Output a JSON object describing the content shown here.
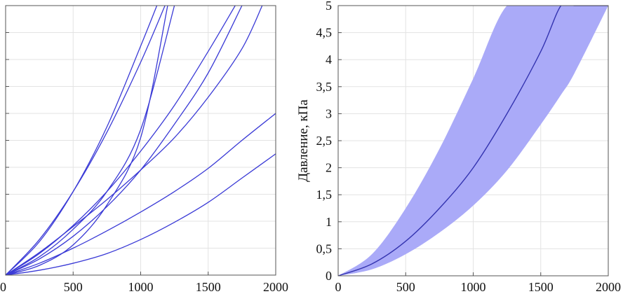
{
  "chart_data": [
    {
      "type": "line",
      "xlim": [
        0,
        2000
      ],
      "ylim": [
        0,
        5
      ],
      "x_ticks": [
        "0",
        "500",
        "1000",
        "1500",
        "2000"
      ],
      "grid": true,
      "line_color": "#3a3ad6",
      "series": [
        {
          "x": [
            0,
            250,
            500,
            750,
            1000,
            1180
          ],
          "y": [
            0,
            0.66,
            1.55,
            2.65,
            3.95,
            5.0
          ]
        },
        {
          "x": [
            0,
            250,
            500,
            750,
            1000,
            1120
          ],
          "y": [
            0,
            0.62,
            1.55,
            2.75,
            4.25,
            5.0
          ]
        },
        {
          "x": [
            0,
            250,
            500,
            750,
            1000,
            1250
          ],
          "y": [
            0,
            0.34,
            0.85,
            1.55,
            2.7,
            5.0
          ]
        },
        {
          "x": [
            0,
            250,
            500,
            750,
            1000,
            1200
          ],
          "y": [
            0,
            0.18,
            0.56,
            1.3,
            2.55,
            5.0
          ]
        },
        {
          "x": [
            0,
            250,
            500,
            750,
            1000,
            1250,
            1500,
            1700
          ],
          "y": [
            0,
            0.4,
            0.92,
            1.55,
            2.3,
            3.15,
            4.15,
            5.0
          ]
        },
        {
          "x": [
            0,
            250,
            500,
            750,
            1000,
            1250,
            1500,
            1750
          ],
          "y": [
            0,
            0.3,
            0.72,
            1.27,
            1.95,
            2.8,
            3.75,
            5.0
          ]
        },
        {
          "x": [
            0,
            250,
            500,
            750,
            1000,
            1250,
            1500,
            1750,
            1900
          ],
          "y": [
            0,
            0.42,
            0.9,
            1.4,
            1.95,
            2.55,
            3.3,
            4.2,
            5.0
          ]
        },
        {
          "x": [
            0,
            250,
            500,
            750,
            1000,
            1250,
            1500,
            1750,
            2000
          ],
          "y": [
            0,
            0.22,
            0.5,
            0.82,
            1.17,
            1.55,
            1.98,
            2.5,
            3.0
          ]
        },
        {
          "x": [
            0,
            250,
            500,
            750,
            1000,
            1250,
            1500,
            1750,
            2000
          ],
          "y": [
            0,
            0.09,
            0.22,
            0.4,
            0.66,
            0.98,
            1.35,
            1.8,
            2.25
          ]
        }
      ]
    },
    {
      "type": "area",
      "ylabel": "Давление, кПа",
      "xlim": [
        0,
        2000
      ],
      "ylim": [
        0,
        5
      ],
      "x_ticks": [
        "0",
        "500",
        "1000",
        "1500",
        "2000"
      ],
      "y_ticks": [
        "0",
        "0,5",
        "1",
        "1,5",
        "2",
        "2,5",
        "3",
        "3,5",
        "4",
        "4,5",
        "5"
      ],
      "grid": true,
      "band_color": "#aaaaf8",
      "line_color": "#3434b0",
      "x": [
        0,
        250,
        500,
        750,
        1000,
        1250,
        1500,
        1650,
        1750,
        2000
      ],
      "mean": [
        0,
        0.22,
        0.64,
        1.25,
        2.0,
        3.0,
        4.15,
        5.0,
        5.0,
        5.0
      ],
      "upper": [
        0,
        0.4,
        1.25,
        2.35,
        3.65,
        5.0,
        5.0,
        5.0,
        5.0,
        5.0
      ],
      "lower": [
        0,
        0.12,
        0.4,
        0.8,
        1.3,
        1.95,
        2.8,
        3.35,
        3.75,
        5.0
      ]
    }
  ]
}
